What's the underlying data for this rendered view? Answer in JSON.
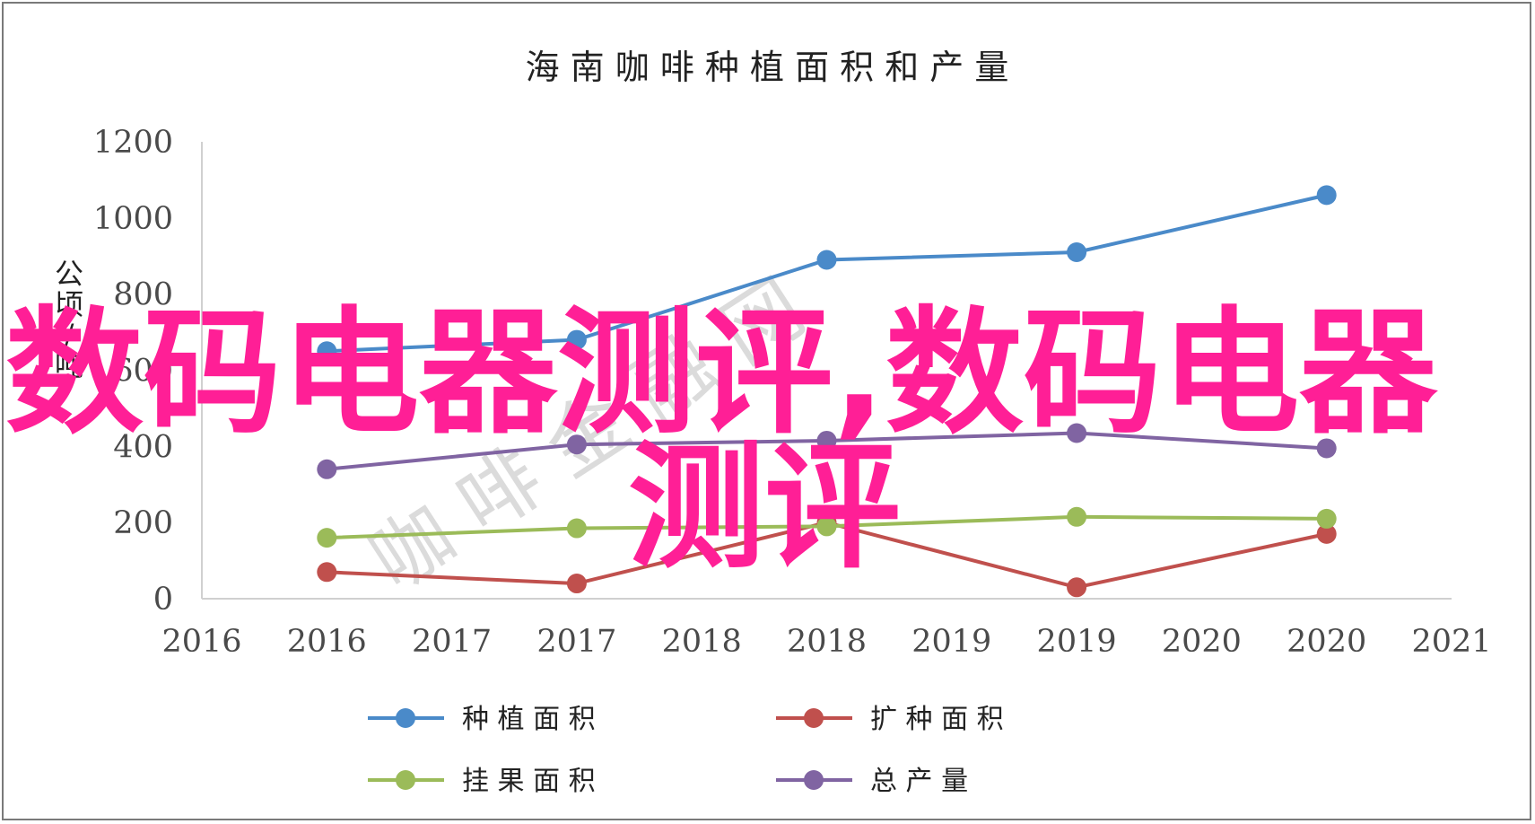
{
  "chart_data": {
    "type": "line",
    "title": "海 南 咖 啡 种 植 面 积 和 产 量",
    "ylabel": "公顷/吨",
    "xlim": [
      2016,
      2021
    ],
    "ylim": [
      0,
      1200
    ],
    "yticks": [
      0,
      200,
      400,
      600,
      800,
      1000,
      1200
    ],
    "x_tick_labels": [
      "2016",
      "2016",
      "2017",
      "2017",
      "2018",
      "2018",
      "2019",
      "2019",
      "2020",
      "2020",
      "2021"
    ],
    "x_points": [
      2016.5,
      2017.5,
      2018.5,
      2019.5,
      2020.5
    ],
    "series": [
      {
        "name": "种 植 面 积",
        "color": "#4a8ac9",
        "values": [
          650,
          680,
          890,
          910,
          1060
        ]
      },
      {
        "name": "扩 种 面 积",
        "color": "#c0504d",
        "values": [
          70,
          40,
          200,
          30,
          170
        ]
      },
      {
        "name": "挂 果 面 积",
        "color": "#9bbb59",
        "values": [
          160,
          185,
          190,
          215,
          210
        ]
      },
      {
        "name": "总 产 量",
        "color": "#8064a2",
        "values": [
          340,
          405,
          415,
          435,
          395
        ]
      }
    ],
    "grid": false,
    "legend_position": "bottom"
  },
  "overlay": {
    "watermark_main_line1": "数码电器测评,数码电器",
    "watermark_main_line2": "测评",
    "watermark_faint": "咖 啡 金 融 网"
  }
}
